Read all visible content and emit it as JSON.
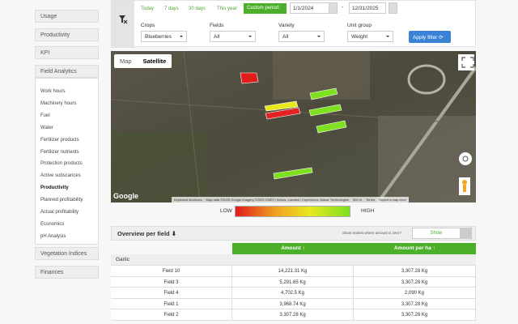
{
  "sidebar": {
    "top_items": [
      "Usage",
      "Productivity",
      "KPI"
    ],
    "section": "Field Analytics",
    "sub_items": [
      "Work hours",
      "Machinery hours",
      "Fuel",
      "Water",
      "Fertilizer products",
      "Fertilizer nutrients",
      "Protection products",
      "Active subscances",
      "Productivity",
      "Planned profitability",
      "Actual profitability",
      "Economics",
      "pH Analysis"
    ],
    "active": "Productivity",
    "bottom_items": [
      "Vegetation Indices",
      "Finances"
    ]
  },
  "filter": {
    "periods": [
      "Today",
      "7 days",
      "30 days",
      "This year"
    ],
    "custom": "Custom period:",
    "date_from": "1/1/2024",
    "separator": "-",
    "date_to": "12/31/2025",
    "fields": [
      {
        "label": "Crops",
        "value": "Blueberries"
      },
      {
        "label": "Fields",
        "value": "All"
      },
      {
        "label": "Variety",
        "value": "All"
      },
      {
        "label": "Unit group",
        "value": "Weight"
      }
    ],
    "apply": "Apply filter"
  },
  "map": {
    "tabs": [
      "Map",
      "Satellite"
    ],
    "logo": "Google",
    "attribution": [
      "Keyboard shortcuts",
      "Map data ©2025 Google Imagery ©2025 CNES / Airbus, Landsat / Copernicus, Maxar Technologies",
      "500 m",
      "Terms",
      "Report a map error"
    ]
  },
  "legend": {
    "low": "LOW",
    "high": "HIGH"
  },
  "overview": {
    "title": "Overview per field",
    "zero_question": "Show entries where amount is zero?",
    "zero_toggle": "Show"
  },
  "table": {
    "headers": [
      "Amount",
      "Amount per ha"
    ],
    "group": "Garlic",
    "rows": [
      [
        "Field 10",
        "14,221.31 Kg",
        "3,307.28 Kg"
      ],
      [
        "Field 3",
        "5,291.65 Kg",
        "3,307.28 Kg"
      ],
      [
        "Field 4",
        "4,702.5 Kg",
        "2,090 Kg"
      ],
      [
        "Field 1",
        "3,968.74 Kg",
        "3,307.28 Kg"
      ],
      [
        "Field 2",
        "3,307.28 Kg",
        "3,307.28 Kg"
      ]
    ]
  }
}
